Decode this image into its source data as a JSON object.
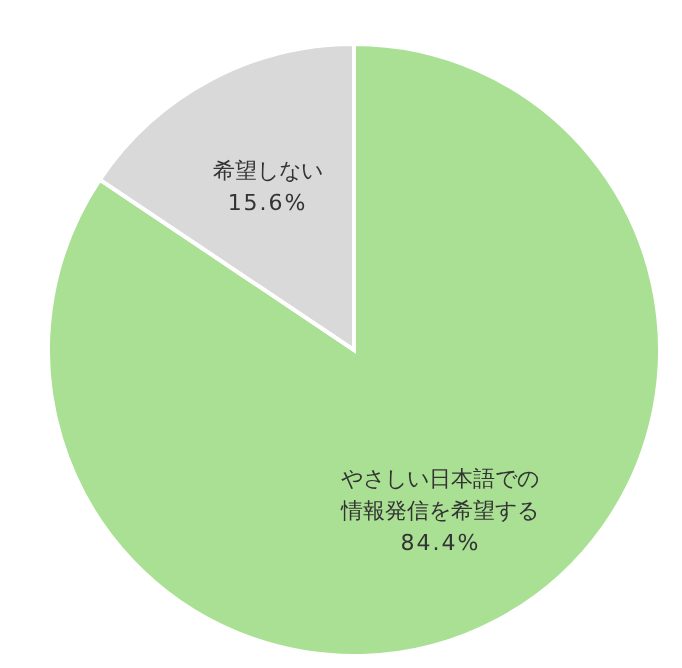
{
  "chart_data": {
    "type": "pie",
    "categories": [
      "やさしい日本語での情報発信を希望する",
      "希望しない"
    ],
    "values": [
      84.4,
      15.6
    ],
    "value_labels": [
      "84.4%",
      "15.6%"
    ],
    "colors": [
      "#a9e093",
      "#d9d9d9"
    ]
  }
}
